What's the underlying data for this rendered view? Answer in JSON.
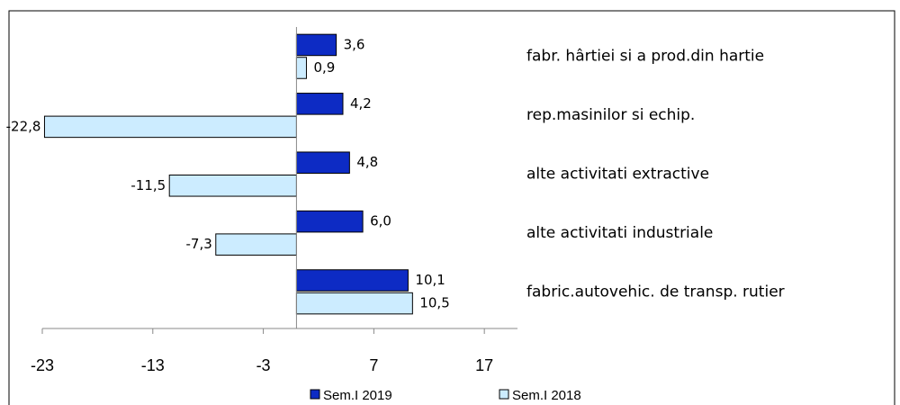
{
  "chart_data": {
    "type": "hbar",
    "categories": [
      "fabr. hârtiei si a prod.din hartie",
      "rep.masinilor si echip.",
      "alte activitati extractive",
      "alte activitati industriale",
      "fabric.autovehic. de transp. rutier"
    ],
    "series": [
      {
        "name": "Sem.I 2019",
        "color": "#0d2bc4",
        "values": [
          3.6,
          4.2,
          4.8,
          6.0,
          10.1
        ],
        "value_labels": [
          "3,6",
          "4,2",
          "4,8",
          "6,0",
          "10,1"
        ]
      },
      {
        "name": "Sem.I 2018",
        "color": "#ccecff",
        "values": [
          0.9,
          -22.8,
          -11.5,
          -7.3,
          10.5
        ],
        "value_labels": [
          "0,9",
          "-22,8",
          "-11,5",
          "-7,3",
          "10,5"
        ]
      }
    ],
    "xlim": [
      -23,
      20
    ],
    "xticks": [
      -23,
      -13,
      -3,
      7,
      17
    ],
    "legend": "bottom"
  }
}
